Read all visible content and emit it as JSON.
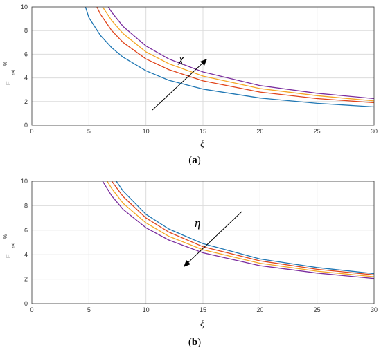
{
  "chart_data": [
    {
      "type": "line",
      "caption": {
        "open": "(",
        "letter": "a",
        "close": ")"
      },
      "xlabel": "ξ",
      "ylabel": {
        "main": "E",
        "sub": "rel",
        "sup": "%"
      },
      "xlim": [
        0,
        30
      ],
      "ylim": [
        0,
        10
      ],
      "xticks": [
        "0",
        "5",
        "10",
        "15",
        "20",
        "25",
        "30"
      ],
      "yticks": [
        "0",
        "2",
        "4",
        "6",
        "8",
        "10"
      ],
      "grid": true,
      "annotation": {
        "text": "χ",
        "arrow": "up-right"
      },
      "colors": [
        "#1f77b4",
        "#e0441b",
        "#f5a623",
        "#7b2d9e"
      ],
      "series": [
        {
          "x": [
            4.7,
            5,
            6,
            7,
            8,
            10,
            12,
            15,
            20,
            25,
            30
          ],
          "y": [
            10.0,
            9.1,
            7.6,
            6.55,
            5.75,
            4.6,
            3.8,
            3.05,
            2.3,
            1.85,
            1.55
          ]
        },
        {
          "x": [
            5.7,
            6,
            7,
            8,
            10,
            12,
            15,
            20,
            25,
            30
          ],
          "y": [
            10.0,
            9.4,
            8.0,
            7.0,
            5.6,
            4.7,
            3.75,
            2.8,
            2.25,
            1.9
          ]
        },
        {
          "x": [
            6.2,
            7,
            8,
            10,
            12,
            15,
            20,
            25,
            30
          ],
          "y": [
            10.0,
            8.85,
            7.75,
            6.2,
            5.2,
            4.15,
            3.1,
            2.5,
            2.05
          ]
        },
        {
          "x": [
            6.7,
            7,
            8,
            10,
            12,
            15,
            20,
            25,
            30
          ],
          "y": [
            10.0,
            9.55,
            8.35,
            6.7,
            5.6,
            4.5,
            3.35,
            2.7,
            2.25
          ]
        }
      ]
    },
    {
      "type": "line",
      "caption": {
        "open": "(",
        "letter": "b",
        "close": ")"
      },
      "xlabel": "ξ",
      "ylabel": {
        "main": "E",
        "sub": "rel",
        "sup": "%"
      },
      "xlim": [
        0,
        30
      ],
      "ylim": [
        0,
        10
      ],
      "xticks": [
        "0",
        "5",
        "10",
        "15",
        "20",
        "25",
        "30"
      ],
      "yticks": [
        "0",
        "2",
        "4",
        "6",
        "8",
        "10"
      ],
      "grid": true,
      "annotation": {
        "text": "η",
        "arrow": "down-left"
      },
      "colors": [
        "#1f77b4",
        "#e0441b",
        "#f5a623",
        "#7b2d9e"
      ],
      "series": [
        {
          "x": [
            7.4,
            8,
            10,
            12,
            15,
            20,
            25,
            30
          ],
          "y": [
            10.0,
            9.2,
            7.3,
            6.1,
            4.9,
            3.65,
            2.95,
            2.45
          ]
        },
        {
          "x": [
            7.0,
            8,
            10,
            12,
            15,
            20,
            25,
            30
          ],
          "y": [
            10.0,
            8.75,
            7.0,
            5.85,
            4.65,
            3.5,
            2.8,
            2.35
          ]
        },
        {
          "x": [
            6.6,
            7,
            8,
            10,
            12,
            15,
            20,
            25,
            30
          ],
          "y": [
            10.0,
            9.4,
            8.2,
            6.6,
            5.5,
            4.4,
            3.3,
            2.65,
            2.2
          ]
        },
        {
          "x": [
            6.2,
            7,
            8,
            10,
            12,
            15,
            20,
            25,
            30
          ],
          "y": [
            10.0,
            8.8,
            7.7,
            6.2,
            5.2,
            4.15,
            3.1,
            2.5,
            2.05
          ]
        }
      ]
    }
  ]
}
